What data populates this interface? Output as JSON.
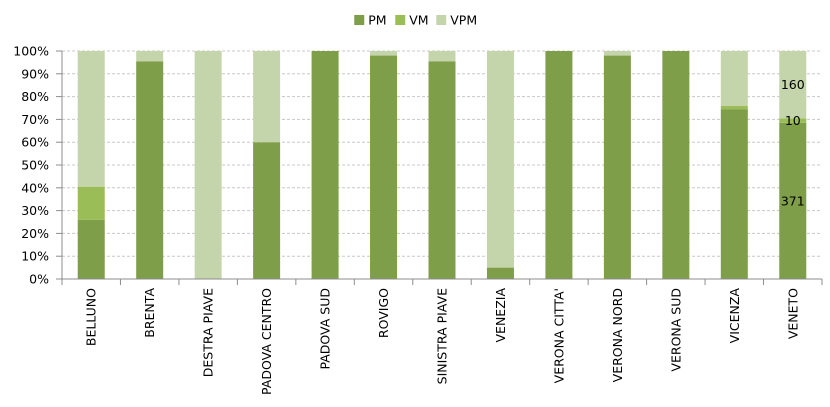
{
  "chart_data": {
    "type": "bar",
    "stacked": true,
    "percent_stacked": true,
    "categories": [
      "BELLUNO",
      "BRENTA",
      "DESTRA PIAVE",
      "PADOVA CENTRO",
      "PADOVA SUD",
      "ROVIGO",
      "SINISTRA PIAVE",
      "VENEZIA",
      "VERONA CITTA'",
      "VERONA NORD",
      "VERONA SUD",
      "VICENZA",
      "VENETO"
    ],
    "series": [
      {
        "name": "PM",
        "color": "#7f9e4a",
        "values": [
          26,
          95.5,
          0,
          60,
          100,
          98,
          95.5,
          5,
          100,
          98,
          100,
          74.5,
          68.5
        ]
      },
      {
        "name": "VM",
        "color": "#9bbd58",
        "values": [
          14.5,
          0,
          0,
          0,
          0,
          0,
          0,
          0,
          0,
          0,
          0,
          1.5,
          2
        ]
      },
      {
        "name": "VPM",
        "color": "#c5d5ab",
        "values": [
          59.5,
          4.5,
          100,
          40,
          0,
          2,
          4.5,
          95,
          0,
          2,
          0,
          24,
          29.5
        ]
      }
    ],
    "y_ticks": [
      "0%",
      "10%",
      "20%",
      "30%",
      "40%",
      "50%",
      "60%",
      "70%",
      "80%",
      "90%",
      "100%"
    ],
    "ylim": [
      0,
      100
    ],
    "grid": true,
    "legend_position": "top",
    "data_labels": [
      {
        "category": "VENETO",
        "series": "VPM",
        "text": "160"
      },
      {
        "category": "VENETO",
        "series": "VM",
        "text": "10"
      },
      {
        "category": "VENETO",
        "series": "PM",
        "text": "371"
      }
    ]
  }
}
